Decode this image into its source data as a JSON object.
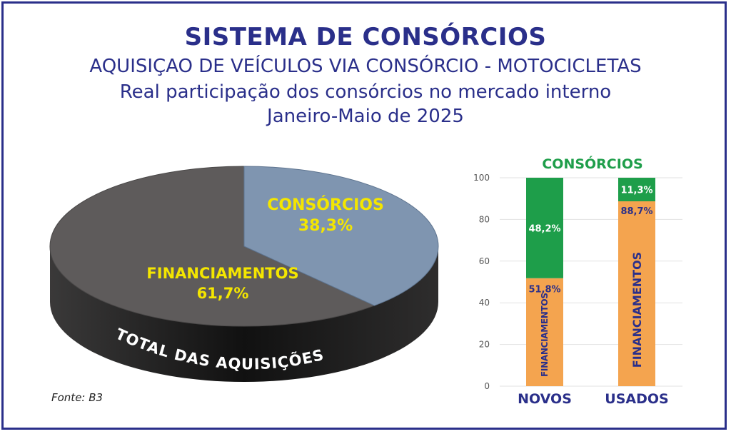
{
  "titles": {
    "main": "SISTEMA DE CONSÓRCIOS",
    "sub1": "AQUISIÇAO DE VEÍCULOS VIA CONSÓRCIO - MOTOCICLETAS",
    "sub2": "Real participação dos consórcios no mercado interno",
    "sub3": "Janeiro-Maio de 2025"
  },
  "source": "Fonte: B3",
  "colors": {
    "title": "#2a2f8a",
    "pie_financiamentos": "#5e5b5b",
    "pie_consorcios": "#7f95b0",
    "pie_side": "#111111",
    "label_yellow": "#f4e600",
    "bar_green": "#1e9e4a",
    "bar_orange": "#f4a44f",
    "green_text": "#1e9e4a"
  },
  "chart_data": [
    {
      "type": "pie",
      "slices": [
        {
          "label": "CONSÓRCIOS",
          "value": 38.3,
          "display": "38,3%"
        },
        {
          "label": "FINANCIAMENTOS",
          "value": 61.7,
          "display": "61,7%"
        }
      ],
      "base_label": "TOTAL DAS AQUISIÇÕES"
    },
    {
      "type": "bar",
      "stacked": true,
      "title": "CONSÓRCIOS",
      "categories": [
        "NOVOS",
        "USADOS"
      ],
      "series": [
        {
          "name": "FINANCIAMENTOS",
          "values": [
            51.8,
            88.7
          ],
          "labels": [
            "51,8%",
            "88,7%"
          ]
        },
        {
          "name": "CONSÓRCIOS",
          "values": [
            48.2,
            11.3
          ],
          "labels": [
            "48,2%",
            "11,3%"
          ]
        }
      ],
      "ylim": [
        0,
        100
      ],
      "yticks": [
        0,
        20,
        40,
        60,
        80,
        100
      ]
    }
  ]
}
